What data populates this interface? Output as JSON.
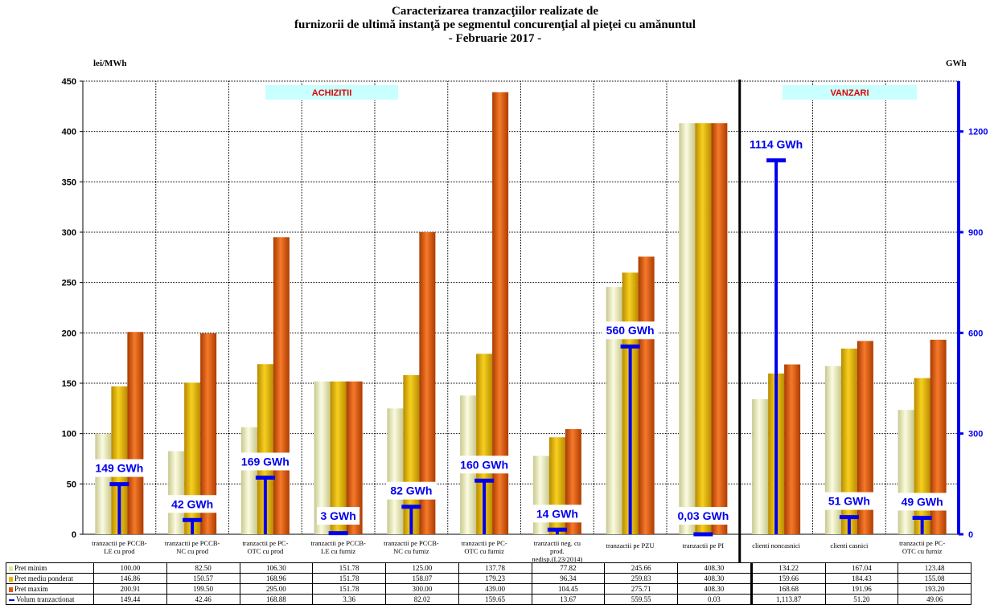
{
  "chart_data": {
    "type": "bar",
    "title_lines": [
      "Caracterizarea tranzacţiilor realizate de",
      "furnizorii de ultimă instanţă pe segmentul concurenţial al pieţei cu amănuntul",
      "- Februarie 2017 -"
    ],
    "ylabel_left": "lei/MWh",
    "ylabel_right": "GWh",
    "ylim_left": [
      0,
      450
    ],
    "yticks_left": [
      "0",
      "50",
      "100",
      "150",
      "200",
      "250",
      "300",
      "350",
      "400",
      "450"
    ],
    "ylim_right": [
      0,
      1350
    ],
    "yticks_right": [
      "0",
      "300",
      "600",
      "900",
      "1200"
    ],
    "grid": true,
    "section_labels": [
      "ACHIZITII",
      "VANZARI"
    ],
    "categories": [
      [
        "tranzactii pe PCCB-",
        "LE cu prod"
      ],
      [
        "tranzactii pe PCCB-",
        "NC cu prod"
      ],
      [
        "tranzactii pe PC-",
        "OTC cu prod"
      ],
      [
        "tranzactii pe PCCB-",
        "LE cu furniz"
      ],
      [
        "tranzactii pe PCCB-",
        "NC cu furniz"
      ],
      [
        "tranzactii pe PC-",
        "OTC cu furniz"
      ],
      [
        "tranzactii neg. cu",
        "prod.",
        "nedisp.(L23/2014)"
      ],
      [
        "tranzactii pe PZU"
      ],
      [
        "tranzactii pe PI"
      ],
      [
        "clienti noncasnici"
      ],
      [
        "clienti casnici"
      ],
      [
        "tranzactii pe PC-",
        "OTC cu furniz"
      ]
    ],
    "series": [
      {
        "name": "Pret minim",
        "color": "#f2f2c0",
        "values": [
          100.0,
          82.5,
          106.3,
          151.78,
          125.0,
          137.78,
          77.82,
          245.66,
          408.3,
          134.22,
          167.04,
          123.48
        ],
        "labels": [
          "100.00",
          "82.50",
          "106.30",
          "151.78",
          "125.00",
          "137.78",
          "77.82",
          "245.66",
          "408.30",
          "134.22",
          "167.04",
          "123.48"
        ]
      },
      {
        "name": "Pret mediu ponderat",
        "color": "#e8b400",
        "values": [
          146.86,
          150.57,
          168.96,
          151.78,
          158.07,
          179.23,
          96.34,
          259.83,
          408.3,
          159.66,
          184.43,
          155.08
        ],
        "labels": [
          "146.86",
          "150.57",
          "168.96",
          "151.78",
          "158.07",
          "179.23",
          "96.34",
          "259.83",
          "408.30",
          "159.66",
          "184.43",
          "155.08"
        ]
      },
      {
        "name": "Pret maxim",
        "color": "#e05a10",
        "values": [
          200.91,
          199.5,
          295.0,
          151.78,
          300.0,
          439.0,
          104.45,
          275.71,
          408.3,
          168.68,
          191.96,
          193.2
        ],
        "labels": [
          "200.91",
          "199.50",
          "295.00",
          "151.78",
          "300.00",
          "439.00",
          "104.45",
          "275.71",
          "408.30",
          "168.68",
          "191.96",
          "193.20"
        ]
      },
      {
        "name": "Volum tranzactionat",
        "color": "#0000ee",
        "axis": "right",
        "values": [
          149.44,
          42.46,
          168.88,
          3.36,
          82.02,
          159.65,
          13.67,
          559.55,
          0.03,
          1113.87,
          51.2,
          49.06
        ],
        "labels": [
          "149.44",
          "42.46",
          "168.88",
          "3.36",
          "82.02",
          "159.65",
          "13.67",
          "559.55",
          "0.03",
          "1,113.87",
          "51.20",
          "49.06"
        ]
      }
    ],
    "volume_annotations": [
      "149 GWh",
      "42 GWh",
      "169 GWh",
      "3 GWh",
      "82 GWh",
      "160 GWh",
      "14 GWh",
      "560 GWh",
      "0,03 GWh",
      "1114 GWh",
      "51 GWh",
      "49 GWh"
    ]
  }
}
